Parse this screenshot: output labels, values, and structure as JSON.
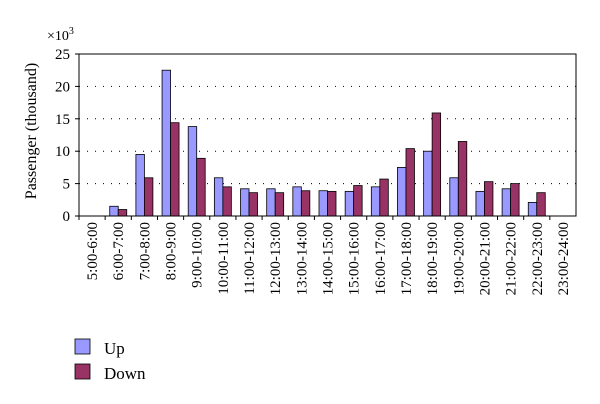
{
  "chart_data": {
    "type": "bar",
    "ylabel": "Passenger (thousand)",
    "multiplier_label": "×10",
    "multiplier_exponent": "3",
    "ylim": [
      0,
      25
    ],
    "yticks": [
      0,
      5,
      10,
      15,
      20,
      25
    ],
    "grid": "horizontal dotted",
    "legend_position": "bottom-left",
    "categories": [
      "5:00-6:00",
      "6:00-7:00",
      "7:00-8:00",
      "8:00-9:00",
      "9:00-10:00",
      "10:00-11:00",
      "11:00-12:00",
      "12:00-13:00",
      "13:00-14:00",
      "14:00-15:00",
      "15:00-16:00",
      "16:00-17:00",
      "17:00-18:00",
      "18:00-19:00",
      "19:00-20:00",
      "20:00-21:00",
      "21:00-22:00",
      "22:00-23:00",
      "23:00-24:00"
    ],
    "series": [
      {
        "name": "Up",
        "color": "#9999ff",
        "values": [
          0,
          1.5,
          9.5,
          22.5,
          13.8,
          5.9,
          4.2,
          4.2,
          4.5,
          3.9,
          3.8,
          4.5,
          7.5,
          10.0,
          5.9,
          3.8,
          4.2,
          2.1,
          0
        ]
      },
      {
        "name": "Down",
        "color": "#993366",
        "values": [
          0,
          1.0,
          5.9,
          14.4,
          8.9,
          4.5,
          3.6,
          3.6,
          3.9,
          3.8,
          4.7,
          5.7,
          10.4,
          15.9,
          11.5,
          5.3,
          5.0,
          3.6,
          0
        ]
      }
    ]
  }
}
